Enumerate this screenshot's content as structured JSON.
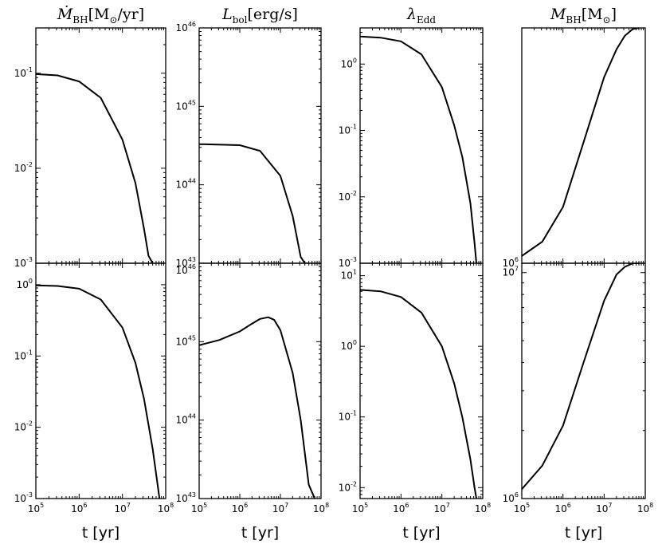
{
  "chart_data": [
    {
      "type": "line",
      "panel": "row1-col1",
      "title": "Ṁ_BH[M_⊙/yr]",
      "title_parts": {
        "main": "Ṁ",
        "sub": "BH",
        "rest": "[M",
        "sub2": "⊙",
        "tail": "/yr]"
      },
      "xscale": "log",
      "yscale": "log",
      "xlim": [
        100000,
        100000000
      ],
      "ylim": [
        0.001,
        0.3
      ],
      "yticks": [
        {
          "base": "10",
          "exp": "-1",
          "value": 0.1
        },
        {
          "base": "10",
          "exp": "-2",
          "value": 0.01
        },
        {
          "base": "10",
          "exp": "-3",
          "value": 0.001
        }
      ],
      "series": [
        {
          "x": [
            100000,
            316228,
            1000000,
            3162278,
            10000000,
            20000000,
            31622777,
            40000000,
            50000000
          ],
          "y": [
            0.098,
            0.095,
            0.082,
            0.055,
            0.02,
            0.007,
            0.0023,
            0.0012,
            0.001
          ]
        }
      ]
    },
    {
      "type": "line",
      "panel": "row1-col2",
      "title": "L_bol[erg/s]",
      "title_parts": {
        "main": "L",
        "sub": "bol",
        "rest": "[erg/s]"
      },
      "xscale": "log",
      "yscale": "log",
      "xlim": [
        100000,
        100000000
      ],
      "ylim": [
        1e+43,
        1e+46
      ],
      "yticks": [
        {
          "base": "10",
          "exp": "46",
          "value": 1e+46
        },
        {
          "base": "10",
          "exp": "45",
          "value": 1e+45
        },
        {
          "base": "10",
          "exp": "44",
          "value": 1e+44
        },
        {
          "base": "10",
          "exp": "43",
          "value": 1e+43
        }
      ],
      "series": [
        {
          "x": [
            100000,
            1000000,
            3162278,
            10000000,
            20000000,
            31622777,
            40000000,
            45000000
          ],
          "y": [
            3.3e+44,
            3.2e+44,
            2.7e+44,
            1.3e+44,
            4e+43,
            1.2e+43,
            1e+43,
            1e+43
          ]
        }
      ]
    },
    {
      "type": "line",
      "panel": "row1-col3",
      "title": "λ_Edd",
      "title_parts": {
        "main": "λ",
        "sub": "Edd"
      },
      "xscale": "log",
      "yscale": "log",
      "xlim": [
        100000,
        100000000
      ],
      "ylim": [
        0.001,
        3.5
      ],
      "yticks": [
        {
          "base": "10",
          "exp": "0",
          "value": 1
        },
        {
          "base": "10",
          "exp": "-1",
          "value": 0.1
        },
        {
          "base": "10",
          "exp": "-2",
          "value": 0.01
        },
        {
          "base": "10",
          "exp": "-3",
          "value": 0.001
        }
      ],
      "series": [
        {
          "x": [
            100000,
            316228,
            1000000,
            3162278,
            10000000,
            20000000,
            31622777,
            50000000,
            63095734,
            70000000
          ],
          "y": [
            2.6,
            2.5,
            2.2,
            1.4,
            0.45,
            0.12,
            0.04,
            0.008,
            0.002,
            0.001
          ]
        }
      ]
    },
    {
      "type": "line",
      "panel": "row1-col4",
      "title": "M_BH[M_⊙]",
      "title_parts": {
        "main": "M",
        "sub": "BH",
        "rest": "[M",
        "sub2": "⊙",
        "tail": "]"
      },
      "xscale": "log",
      "yscale": "log",
      "xlim": [
        100000,
        100000000
      ],
      "ylim": [
        1000000,
        1380000
      ],
      "yticks": [
        {
          "base": "10",
          "exp": "6",
          "value": 1000000
        }
      ],
      "series": [
        {
          "x": [
            100000,
            316228,
            1000000,
            3162278,
            10000000,
            20000000,
            31622777,
            50000000,
            70000000
          ],
          "y": [
            1010000,
            1030000,
            1080000,
            1180000,
            1290000,
            1340000,
            1365000,
            1378000,
            1380000
          ]
        }
      ]
    },
    {
      "type": "line",
      "panel": "row2-col1",
      "xscale": "log",
      "yscale": "log",
      "xlim": [
        100000,
        100000000
      ],
      "ylim": [
        0.001,
        2
      ],
      "yticks": [
        {
          "base": "10",
          "exp": "0",
          "value": 1
        },
        {
          "base": "10",
          "exp": "-1",
          "value": 0.1
        },
        {
          "base": "10",
          "exp": "-2",
          "value": 0.01
        },
        {
          "base": "10",
          "exp": "-3",
          "value": 0.001
        }
      ],
      "xticks": [
        {
          "base": "10",
          "exp": "5",
          "value": 100000
        },
        {
          "base": "10",
          "exp": "6",
          "value": 1000000
        },
        {
          "base": "10",
          "exp": "7",
          "value": 10000000
        },
        {
          "base": "10",
          "exp": "8",
          "value": 100000000
        }
      ],
      "xlabel": "t [yr]",
      "series": [
        {
          "x": [
            100000,
            316228,
            1000000,
            3162278,
            10000000,
            20000000,
            31622777,
            50000000,
            63095734,
            72000000
          ],
          "y": [
            0.98,
            0.96,
            0.88,
            0.62,
            0.25,
            0.08,
            0.025,
            0.005,
            0.0018,
            0.001
          ]
        }
      ]
    },
    {
      "type": "line",
      "panel": "row2-col2",
      "xscale": "log",
      "yscale": "log",
      "xlim": [
        100000,
        100000000
      ],
      "ylim": [
        1e+43,
        1e+46
      ],
      "yticks": [
        {
          "base": "10",
          "exp": "46",
          "value": 1e+46
        },
        {
          "base": "10",
          "exp": "45",
          "value": 1e+45
        },
        {
          "base": "10",
          "exp": "44",
          "value": 1e+44
        },
        {
          "base": "10",
          "exp": "43",
          "value": 1e+43
        }
      ],
      "xticks": [
        {
          "base": "10",
          "exp": "5",
          "value": 100000
        },
        {
          "base": "10",
          "exp": "6",
          "value": 1000000
        },
        {
          "base": "10",
          "exp": "7",
          "value": 10000000
        },
        {
          "base": "10",
          "exp": "8",
          "value": 100000000
        }
      ],
      "xlabel": "t [yr]",
      "series": [
        {
          "x": [
            100000,
            316228,
            1000000,
            2000000,
            3162278,
            5011872,
            7000000,
            10000000,
            20000000,
            31622777,
            50000000,
            70000000
          ],
          "y": [
            9e+44,
            1.05e+45,
            1.35e+45,
            1.7e+45,
            1.95e+45,
            2.05e+45,
            1.9e+45,
            1.4e+45,
            4e+44,
            1e+44,
            1.5e+43,
            1e+43
          ]
        }
      ]
    },
    {
      "type": "line",
      "panel": "row2-col3",
      "xscale": "log",
      "yscale": "log",
      "xlim": [
        100000,
        100000000
      ],
      "ylim": [
        0.007,
        15
      ],
      "yticks": [
        {
          "base": "10",
          "exp": "1",
          "value": 10
        },
        {
          "base": "10",
          "exp": "0",
          "value": 1
        },
        {
          "base": "10",
          "exp": "-1",
          "value": 0.1
        },
        {
          "base": "10",
          "exp": "-2",
          "value": 0.01
        }
      ],
      "xticks": [
        {
          "base": "10",
          "exp": "5",
          "value": 100000
        },
        {
          "base": "10",
          "exp": "6",
          "value": 1000000
        },
        {
          "base": "10",
          "exp": "7",
          "value": 10000000
        },
        {
          "base": "10",
          "exp": "8",
          "value": 100000000
        }
      ],
      "xlabel": "t [yr]",
      "series": [
        {
          "x": [
            100000,
            316228,
            1000000,
            3162278,
            10000000,
            20000000,
            31622777,
            50000000,
            63095734,
            70000000
          ],
          "y": [
            6.3,
            6.0,
            5.0,
            3.0,
            1.0,
            0.3,
            0.1,
            0.025,
            0.01,
            0.007
          ]
        }
      ]
    },
    {
      "type": "line",
      "panel": "row2-col4",
      "xscale": "log",
      "yscale": "log",
      "xlim": [
        100000,
        100000000
      ],
      "ylim": [
        1000000,
        11000000
      ],
      "yticks": [
        {
          "base": "10",
          "exp": "7",
          "value": 10000000
        },
        {
          "base": "10",
          "exp": "6",
          "value": 1000000
        }
      ],
      "xticks": [
        {
          "base": "10",
          "exp": "5",
          "value": 100000
        },
        {
          "base": "10",
          "exp": "6",
          "value": 1000000
        },
        {
          "base": "10",
          "exp": "7",
          "value": 10000000
        },
        {
          "base": "10",
          "exp": "8",
          "value": 100000000
        }
      ],
      "xlabel": "t [yr]",
      "series": [
        {
          "x": [
            100000,
            316228,
            1000000,
            3162278,
            10000000,
            20000000,
            31622777,
            50000000,
            70000000
          ],
          "y": [
            1100000,
            1400000,
            2100000,
            4000000,
            7500000,
            9800000,
            10600000,
            11000000,
            11000000
          ]
        }
      ]
    }
  ]
}
